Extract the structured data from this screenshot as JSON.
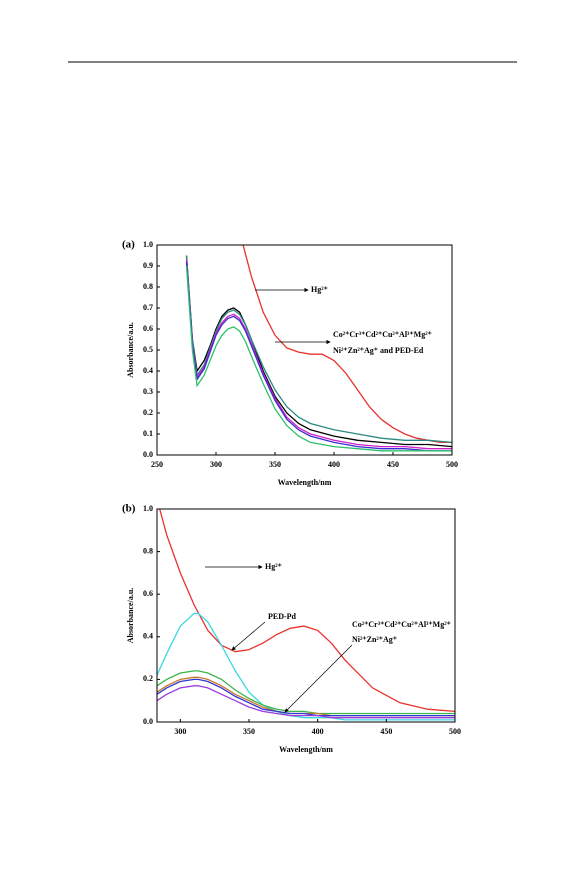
{
  "chart_data": [
    {
      "type": "line",
      "panel_label": "(a)",
      "xlabel": "Wavelength/nm",
      "ylabel": "Absorbance/a.u.",
      "xlim": [
        250,
        500
      ],
      "xticks": [
        250,
        300,
        350,
        400,
        450,
        500
      ],
      "ylim": [
        0,
        1
      ],
      "yticks": [
        {
          "value": 0,
          "label": "0.0"
        },
        0.1,
        0.2,
        0.3,
        0.4,
        0.5,
        0.6,
        0.7,
        0.8,
        0.9,
        {
          "value": 1,
          "label": "1.0"
        }
      ],
      "annotations": [
        "Hg²⁺",
        "Co²⁺Cr³⁺Cd²⁺Cu²⁺Al³⁺Mg²⁺",
        "Ni²⁺Zn²⁺Ag⁺ and PED-Ed"
      ],
      "series": [
        {
          "color": "#e8322c",
          "x": [
            323,
            330,
            340,
            350,
            360,
            370,
            380,
            390,
            400,
            410,
            420,
            430,
            440,
            450,
            460,
            470,
            480,
            490,
            500
          ],
          "values": [
            1.0,
            0.85,
            0.68,
            0.57,
            0.51,
            0.49,
            0.48,
            0.48,
            0.45,
            0.39,
            0.31,
            0.23,
            0.17,
            0.13,
            0.1,
            0.08,
            0.07,
            0.06,
            0.06
          ]
        },
        {
          "color": "#000000",
          "x": [
            275,
            280,
            284,
            290,
            295,
            300,
            305,
            310,
            315,
            320,
            325,
            330,
            340,
            350,
            360,
            370,
            380,
            400,
            420,
            440,
            460,
            480,
            500
          ],
          "values": [
            0.95,
            0.55,
            0.4,
            0.45,
            0.52,
            0.6,
            0.66,
            0.69,
            0.7,
            0.68,
            0.62,
            0.55,
            0.4,
            0.28,
            0.2,
            0.15,
            0.12,
            0.09,
            0.07,
            0.06,
            0.05,
            0.05,
            0.04
          ]
        },
        {
          "color": "#2a8a82",
          "x": [
            275,
            280,
            284,
            290,
            295,
            300,
            305,
            310,
            315,
            320,
            325,
            330,
            340,
            350,
            360,
            370,
            380,
            400,
            420,
            440,
            460,
            480,
            500
          ],
          "values": [
            0.95,
            0.55,
            0.38,
            0.43,
            0.51,
            0.59,
            0.65,
            0.68,
            0.69,
            0.67,
            0.62,
            0.55,
            0.42,
            0.31,
            0.23,
            0.18,
            0.15,
            0.12,
            0.1,
            0.08,
            0.07,
            0.07,
            0.06
          ]
        },
        {
          "color": "#d01fc8",
          "x": [
            275,
            280,
            284,
            290,
            295,
            300,
            305,
            310,
            315,
            320,
            325,
            330,
            340,
            350,
            360,
            370,
            380,
            400,
            420,
            440,
            460,
            480,
            500
          ],
          "values": [
            0.93,
            0.53,
            0.37,
            0.42,
            0.5,
            0.58,
            0.63,
            0.66,
            0.67,
            0.65,
            0.6,
            0.53,
            0.39,
            0.27,
            0.18,
            0.13,
            0.1,
            0.07,
            0.05,
            0.04,
            0.04,
            0.03,
            0.03
          ]
        },
        {
          "color": "#3a2fd0",
          "x": [
            275,
            280,
            284,
            290,
            295,
            300,
            305,
            310,
            315,
            320,
            325,
            330,
            340,
            350,
            360,
            370,
            380,
            400,
            420,
            440,
            460,
            480,
            500
          ],
          "values": [
            0.92,
            0.52,
            0.36,
            0.41,
            0.49,
            0.57,
            0.62,
            0.65,
            0.66,
            0.64,
            0.59,
            0.52,
            0.38,
            0.26,
            0.17,
            0.12,
            0.09,
            0.06,
            0.04,
            0.03,
            0.03,
            0.02,
            0.02
          ]
        },
        {
          "color": "#2fc06a",
          "x": [
            275,
            280,
            284,
            290,
            295,
            300,
            305,
            310,
            315,
            320,
            325,
            330,
            340,
            350,
            360,
            370,
            380,
            400,
            420,
            440,
            460,
            480,
            500
          ],
          "values": [
            0.9,
            0.5,
            0.33,
            0.38,
            0.45,
            0.52,
            0.57,
            0.6,
            0.61,
            0.59,
            0.54,
            0.47,
            0.34,
            0.22,
            0.14,
            0.09,
            0.06,
            0.04,
            0.03,
            0.02,
            0.02,
            0.02,
            0.02
          ]
        }
      ]
    },
    {
      "type": "line",
      "panel_label": "(b)",
      "xlabel": "Wavelength/nm",
      "ylabel": "Absorbance/a.u.",
      "xlim": [
        283,
        500
      ],
      "xticks": [
        300,
        350,
        400,
        450,
        500
      ],
      "ylim": [
        0,
        1
      ],
      "yticks": [
        {
          "value": 0,
          "label": "0.0"
        },
        0.2,
        0.4,
        0.6,
        0.8,
        {
          "value": 1,
          "label": "1.0"
        }
      ],
      "annotations": [
        "Hg²⁺",
        "PED-Pd",
        "Co²⁺Cr³⁺Cd²⁺Cu²⁺Al³⁺Mg²⁺",
        "Ni²⁺Zn²⁺Ag⁺"
      ],
      "series": [
        {
          "color": "#e8322c",
          "x": [
            285,
            290,
            300,
            310,
            320,
            330,
            340,
            350,
            360,
            370,
            380,
            390,
            400,
            410,
            420,
            440,
            460,
            480,
            500
          ],
          "values": [
            1.0,
            0.88,
            0.7,
            0.55,
            0.43,
            0.36,
            0.33,
            0.34,
            0.37,
            0.41,
            0.44,
            0.45,
            0.43,
            0.37,
            0.29,
            0.16,
            0.09,
            0.06,
            0.05
          ]
        },
        {
          "color": "#3ad8e0",
          "x": [
            283,
            290,
            300,
            310,
            313,
            320,
            330,
            340,
            350,
            360,
            370,
            380,
            390,
            400,
            410,
            420,
            440,
            460,
            480,
            500
          ],
          "values": [
            0.22,
            0.32,
            0.45,
            0.51,
            0.51,
            0.47,
            0.36,
            0.24,
            0.14,
            0.08,
            0.05,
            0.03,
            0.02,
            0.02,
            0.02,
            0.01,
            0.01,
            0.01,
            0.01,
            0.01
          ]
        },
        {
          "color": "#39b54a",
          "x": [
            283,
            290,
            300,
            310,
            313,
            320,
            330,
            340,
            350,
            360,
            370,
            380,
            390,
            400,
            410,
            420,
            440,
            460,
            480,
            500
          ],
          "values": [
            0.17,
            0.2,
            0.23,
            0.24,
            0.24,
            0.23,
            0.2,
            0.15,
            0.11,
            0.08,
            0.06,
            0.05,
            0.05,
            0.04,
            0.04,
            0.04,
            0.04,
            0.04,
            0.04,
            0.04
          ]
        },
        {
          "color": "#c8782a",
          "x": [
            283,
            290,
            300,
            310,
            313,
            320,
            330,
            340,
            350,
            360,
            370,
            380,
            390,
            400,
            410,
            420,
            440,
            460,
            480,
            500
          ],
          "values": [
            0.14,
            0.17,
            0.2,
            0.21,
            0.21,
            0.2,
            0.17,
            0.13,
            0.1,
            0.07,
            0.05,
            0.04,
            0.04,
            0.04,
            0.03,
            0.03,
            0.03,
            0.03,
            0.03,
            0.03
          ]
        },
        {
          "color": "#2f3ad0",
          "x": [
            283,
            290,
            300,
            310,
            313,
            320,
            330,
            340,
            350,
            360,
            370,
            380,
            390,
            400,
            410,
            420,
            440,
            460,
            480,
            500
          ],
          "values": [
            0.13,
            0.16,
            0.19,
            0.2,
            0.2,
            0.19,
            0.16,
            0.12,
            0.09,
            0.06,
            0.05,
            0.04,
            0.04,
            0.03,
            0.03,
            0.03,
            0.03,
            0.03,
            0.03,
            0.03
          ]
        },
        {
          "color": "#9a3ae0",
          "x": [
            283,
            290,
            300,
            310,
            313,
            320,
            330,
            340,
            350,
            360,
            370,
            380,
            390,
            400,
            410,
            420,
            440,
            460,
            480,
            500
          ],
          "values": [
            0.1,
            0.13,
            0.16,
            0.17,
            0.17,
            0.16,
            0.13,
            0.1,
            0.07,
            0.05,
            0.04,
            0.03,
            0.03,
            0.03,
            0.02,
            0.02,
            0.02,
            0.02,
            0.02,
            0.02
          ]
        }
      ]
    }
  ]
}
